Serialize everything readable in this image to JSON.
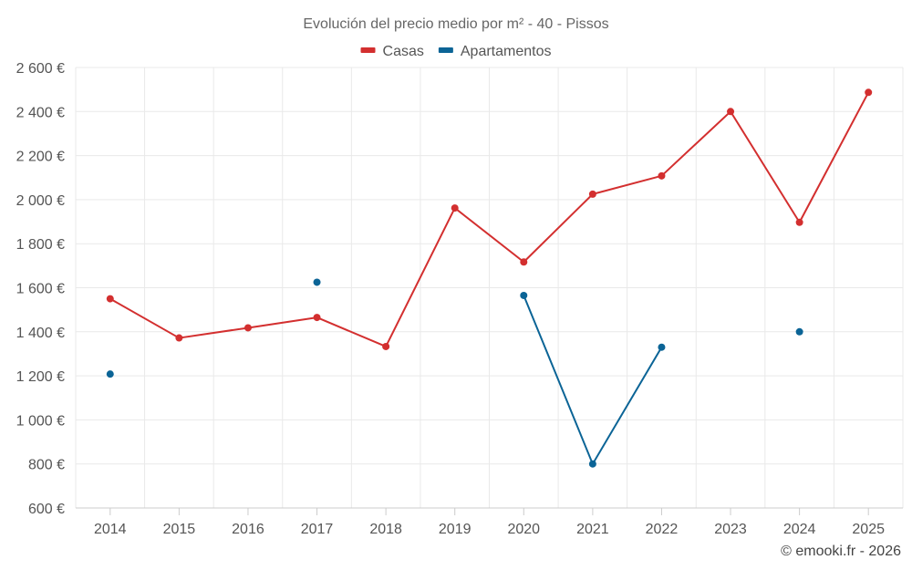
{
  "chart_data": {
    "type": "line",
    "title": "Evolución del precio medio por m² - 40 - Pissos",
    "xlabel": "",
    "ylabel": "",
    "categories": [
      "2014",
      "2015",
      "2016",
      "2017",
      "2018",
      "2019",
      "2020",
      "2021",
      "2022",
      "2023",
      "2024",
      "2025"
    ],
    "ylim": [
      600,
      2600
    ],
    "yticks": [
      600,
      800,
      1000,
      1200,
      1400,
      1600,
      1800,
      2000,
      2200,
      2400,
      2600
    ],
    "ytick_labels": [
      "600 €",
      "800 €",
      "1 000 €",
      "1 200 €",
      "1 400 €",
      "1 600 €",
      "1 800 €",
      "2 000 €",
      "2 200 €",
      "2 400 €",
      "2 600 €"
    ],
    "grid": true,
    "legend_position": "top-center",
    "series": [
      {
        "name": "Casas",
        "color": "#d32f2f",
        "values": [
          1550,
          1372,
          1418,
          1465,
          1333,
          1962,
          1717,
          2025,
          2108,
          2400,
          1897,
          2487
        ]
      },
      {
        "name": "Apartamentos",
        "color": "#0b6496",
        "values": [
          1208,
          null,
          null,
          1625,
          null,
          null,
          1565,
          800,
          1330,
          null,
          1400,
          null
        ]
      }
    ],
    "credit": "© emooki.fr - 2026"
  }
}
